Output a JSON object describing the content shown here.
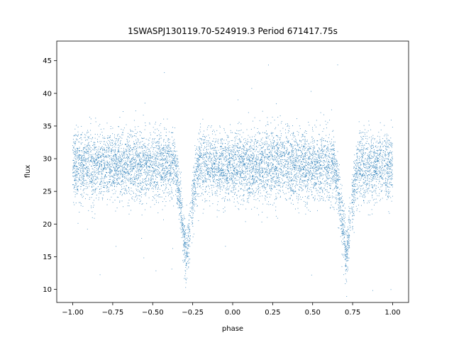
{
  "chart_data": {
    "type": "scatter",
    "title": "1SWASPJ130119.70-524919.3 Period 671417.75s",
    "xlabel": "phase",
    "ylabel": "flux",
    "xlim": [
      -1.1,
      1.1
    ],
    "ylim": [
      8,
      48
    ],
    "xticks": [
      -1.0,
      -0.75,
      -0.5,
      -0.25,
      0.0,
      0.25,
      0.5,
      0.75,
      1.0
    ],
    "xtick_labels": [
      "−1.00",
      "−0.75",
      "−0.50",
      "−0.25",
      "0.00",
      "0.25",
      "0.50",
      "0.75",
      "1.00"
    ],
    "yticks": [
      10,
      15,
      20,
      25,
      30,
      35,
      40,
      45
    ],
    "ytick_labels": [
      "10",
      "15",
      "20",
      "25",
      "30",
      "35",
      "40",
      "45"
    ],
    "grid": false,
    "point_color": "#1f77b4",
    "series": [
      {
        "light_curve": {
          "x_range": [
            -1.0,
            1.0
          ],
          "baseline_flux": 29,
          "scatter_sd": 2.6,
          "primary_eclipses": [
            {
              "phase": -0.29,
              "min_flux": 14.5
            },
            {
              "phase": 0.71,
              "min_flux": 14.5
            }
          ],
          "eclipse_half_width": 0.075,
          "data_gaps": [
            -0.26,
            0.74
          ],
          "outlier_flux_range": [
            9.5,
            46
          ]
        }
      }
    ]
  }
}
